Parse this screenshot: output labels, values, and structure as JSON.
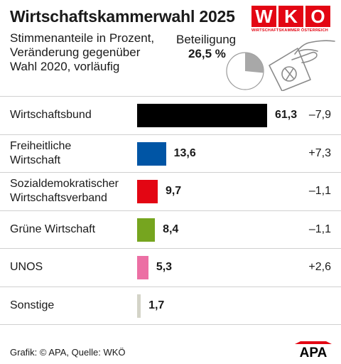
{
  "header": {
    "title": "Wirtschaftskammerwahl 2025",
    "subtitle_lines": [
      "Stimmenanteile in Prozent,",
      "Veränderung gegenüber",
      "Wahl 2020, vorläufig"
    ],
    "turnout_label": "Beteiligung",
    "turnout_value": "26,5 %",
    "turnout_fraction": 0.265
  },
  "wko_logo": {
    "letters": [
      "W",
      "K",
      "O"
    ],
    "subtext": "WIRTSCHAFTSKAMMER ÖSTERREICH",
    "color": "#e30613"
  },
  "chart_data": {
    "type": "bar",
    "categories": [
      "Wirtschaftsbund",
      "Freiheitliche Wirtschaft",
      "Sozialdemokratischer Wirtschaftsverband",
      "Grüne Wirtschaft",
      "UNOS",
      "Sonstige"
    ],
    "category_lines": [
      [
        "Wirtschaftsbund"
      ],
      [
        "Freiheitliche",
        "Wirtschaft"
      ],
      [
        "Sozialdemokratischer",
        "Wirtschaftsverband"
      ],
      [
        "Grüne Wirtschaft"
      ],
      [
        "UNOS"
      ],
      [
        "Sonstige"
      ]
    ],
    "values": [
      61.3,
      13.6,
      9.7,
      8.4,
      5.3,
      1.7
    ],
    "value_labels": [
      "61,3",
      "13,6",
      "9,7",
      "8,4",
      "5,3",
      "1,7"
    ],
    "changes": [
      -7.9,
      7.3,
      -1.1,
      -1.1,
      2.6,
      null
    ],
    "change_labels": [
      "–7,9",
      "+7,3",
      "–1,1",
      "–1,1",
      "+2,6",
      ""
    ],
    "colors": [
      "#000000",
      "#0055a5",
      "#e30613",
      "#76a51f",
      "#ec6fa4",
      "#d4d4c8"
    ],
    "xlim": [
      0,
      61.3
    ]
  },
  "footer": {
    "source": "Grafik: © APA, Quelle: WKÖ",
    "apa_logo_text": "APA"
  }
}
